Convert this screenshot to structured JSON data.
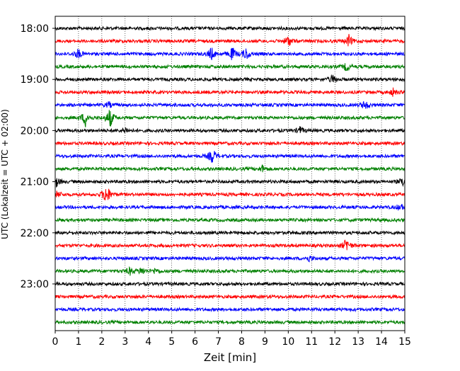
{
  "chart_data": {
    "type": "line",
    "title": "",
    "xlabel": "Zeit  [min]",
    "ylabel": "UTC (Lokalzeit = UTC + 02:00)",
    "xlim": [
      0,
      15
    ],
    "x_ticks": [
      0,
      1,
      2,
      3,
      4,
      5,
      6,
      7,
      8,
      9,
      10,
      11,
      12,
      13,
      14,
      15
    ],
    "y_tick_labels": [
      "18:00",
      "19:00",
      "20:00",
      "21:00",
      "22:00",
      "23:00"
    ],
    "grid": "vertical-dotted",
    "colors": [
      "#000000",
      "#ff0000",
      "#0000ff",
      "#008000"
    ],
    "traces": [
      {
        "start": "18:00",
        "color": "#000000",
        "events": []
      },
      {
        "start": "18:15",
        "color": "#ff0000",
        "events": [
          {
            "t": 10.0,
            "amp": 8
          },
          {
            "t": 12.6,
            "amp": 8
          }
        ]
      },
      {
        "start": "18:30",
        "color": "#0000ff",
        "events": [
          {
            "t": 1.0,
            "amp": 7
          },
          {
            "t": 6.7,
            "amp": 9
          },
          {
            "t": 7.6,
            "amp": 9
          },
          {
            "t": 8.2,
            "amp": 9
          }
        ]
      },
      {
        "start": "18:45",
        "color": "#008000",
        "events": [
          {
            "t": 12.5,
            "amp": 6
          }
        ]
      },
      {
        "start": "19:00",
        "color": "#000000",
        "events": [
          {
            "t": 11.9,
            "amp": 6
          }
        ]
      },
      {
        "start": "19:15",
        "color": "#ff0000",
        "events": [
          {
            "t": 14.5,
            "amp": 5
          }
        ]
      },
      {
        "start": "19:30",
        "color": "#0000ff",
        "events": [
          {
            "t": 13.3,
            "amp": 7
          },
          {
            "t": 2.3,
            "amp": 4
          }
        ]
      },
      {
        "start": "19:45",
        "color": "#008000",
        "events": [
          {
            "t": 1.3,
            "amp": 12
          },
          {
            "t": 2.35,
            "amp": 14
          }
        ]
      },
      {
        "start": "20:00",
        "color": "#000000",
        "events": [
          {
            "t": 10.5,
            "amp": 5
          },
          {
            "t": 3.0,
            "amp": 4
          }
        ]
      },
      {
        "start": "20:15",
        "color": "#ff0000",
        "events": []
      },
      {
        "start": "20:30",
        "color": "#0000ff",
        "events": [
          {
            "t": 6.75,
            "amp": 11
          }
        ]
      },
      {
        "start": "20:45",
        "color": "#008000",
        "events": [
          {
            "t": 8.9,
            "amp": 5
          }
        ]
      },
      {
        "start": "21:00",
        "color": "#000000",
        "events": [
          {
            "t": 0.05,
            "amp": 7
          },
          {
            "t": 14.95,
            "amp": 8
          }
        ]
      },
      {
        "start": "21:15",
        "color": "#ff0000",
        "events": [
          {
            "t": 0.1,
            "amp": 5
          },
          {
            "t": 2.2,
            "amp": 16
          }
        ]
      },
      {
        "start": "21:30",
        "color": "#0000ff",
        "events": [
          {
            "t": 14.8,
            "amp": 5
          }
        ]
      },
      {
        "start": "21:45",
        "color": "#008000",
        "events": []
      },
      {
        "start": "22:00",
        "color": "#000000",
        "events": []
      },
      {
        "start": "22:15",
        "color": "#ff0000",
        "events": [
          {
            "t": 12.5,
            "amp": 10
          }
        ]
      },
      {
        "start": "22:30",
        "color": "#0000ff",
        "events": [
          {
            "t": 10.9,
            "amp": 4
          }
        ]
      },
      {
        "start": "22:45",
        "color": "#008000",
        "events": [
          {
            "t": 3.2,
            "amp": 5
          },
          {
            "t": 3.7,
            "amp": 5
          },
          {
            "t": 4.3,
            "amp": 4
          }
        ]
      },
      {
        "start": "23:00",
        "color": "#000000",
        "events": []
      },
      {
        "start": "23:15",
        "color": "#ff0000",
        "events": []
      },
      {
        "start": "23:30",
        "color": "#0000ff",
        "events": []
      },
      {
        "start": "23:45",
        "color": "#008000",
        "events": []
      }
    ]
  }
}
